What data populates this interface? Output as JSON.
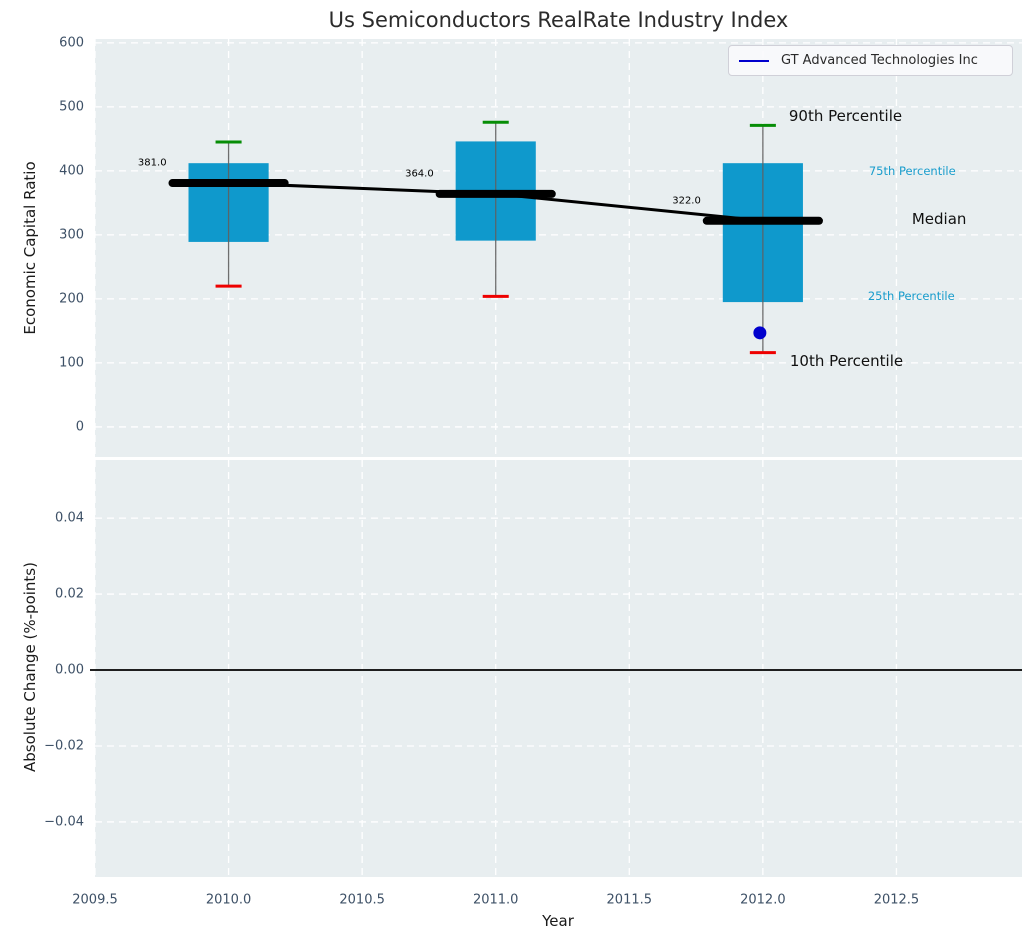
{
  "title": "Us Semiconductors RealRate Industry Index",
  "legend": {
    "label": "GT Advanced Technologies Inc",
    "line_color": "#0000cd"
  },
  "colors": {
    "axes_background": "#e8eef0",
    "grid": "#ffffff",
    "tick_text": "#3d5066",
    "box_fill": "#0f99cc",
    "whisker": "#606060",
    "p90_cap": "#068d06",
    "p10_cap": "#ee0000",
    "median_line": "#000000",
    "company_blue": "#0000cd",
    "zero_line": "#000000"
  },
  "chart_data": [
    {
      "type": "bar",
      "subtype": "percentile-boxes-with-median-trend",
      "title": "Us Semiconductors RealRate Industry Index",
      "xlabel": "Year",
      "ylabel": "Economic Capital Ratio",
      "xlim": [
        2009.5,
        2012.97
      ],
      "ylim": [
        -47,
        606
      ],
      "grid": "white dashed, on",
      "legend_position": "upper right",
      "xticks": [
        {
          "v": 2009.5,
          "label": "2009.5"
        },
        {
          "v": 2010.0,
          "label": "2010.0"
        },
        {
          "v": 2010.5,
          "label": "2010.5"
        },
        {
          "v": 2011.0,
          "label": "2011.0"
        },
        {
          "v": 2011.5,
          "label": "2011.5"
        },
        {
          "v": 2012.0,
          "label": "2012.0"
        },
        {
          "v": 2012.5,
          "label": "2012.5"
        }
      ],
      "yticks": [
        {
          "v": 0,
          "label": "0"
        },
        {
          "v": 100,
          "label": "100"
        },
        {
          "v": 200,
          "label": "200"
        },
        {
          "v": 300,
          "label": "300"
        },
        {
          "v": 400,
          "label": "400"
        },
        {
          "v": 500,
          "label": "500"
        },
        {
          "v": 600,
          "label": "600"
        }
      ],
      "categories": [
        2010,
        2011,
        2012
      ],
      "boxes": [
        {
          "year": 2010,
          "p10": 220,
          "p25": 289,
          "median": 381,
          "p75": 412,
          "p90": 445,
          "median_label": "381.0"
        },
        {
          "year": 2011,
          "p10": 204,
          "p25": 291,
          "median": 364,
          "p75": 446,
          "p90": 476,
          "median_label": "364.0"
        },
        {
          "year": 2012,
          "p10": 116,
          "p25": 195,
          "median": 322,
          "p75": 412,
          "p90": 471,
          "median_label": "322.0"
        }
      ],
      "series": [
        {
          "name": "Median trend",
          "x": [
            2010,
            2011,
            2012
          ],
          "values": [
            381,
            364,
            322
          ],
          "color": "#000000"
        },
        {
          "name": "GT Advanced Technologies Inc",
          "x": [
            2012
          ],
          "values": [
            147
          ],
          "color": "#0000cd",
          "marker": "dot"
        }
      ],
      "annotations": {
        "p90": "90th Percentile",
        "p75": "75th Percentile",
        "median": "Median",
        "p25": "25th Percentile",
        "p10": "10th Percentile"
      },
      "layout_hints": {
        "box_width_years": 0.3,
        "cap_width_years": 0.075,
        "median_segment_halfwidth_years": 0.21
      }
    },
    {
      "type": "line",
      "subtype": "empty-with-zero-line",
      "xlabel": "Year",
      "ylabel": "Absolute Change (%-points)",
      "xlim": [
        2009.5,
        2012.97
      ],
      "ylim": [
        -0.0545,
        0.0553
      ],
      "grid": "white dashed, on",
      "zero_line": 0.0,
      "yticks": [
        {
          "v": 0.04,
          "label": "0.04"
        },
        {
          "v": 0.02,
          "label": "0.02"
        },
        {
          "v": 0.0,
          "label": "0.00"
        },
        {
          "v": -0.02,
          "label": "−0.02"
        },
        {
          "v": -0.04,
          "label": "−0.04"
        }
      ],
      "series": []
    }
  ]
}
